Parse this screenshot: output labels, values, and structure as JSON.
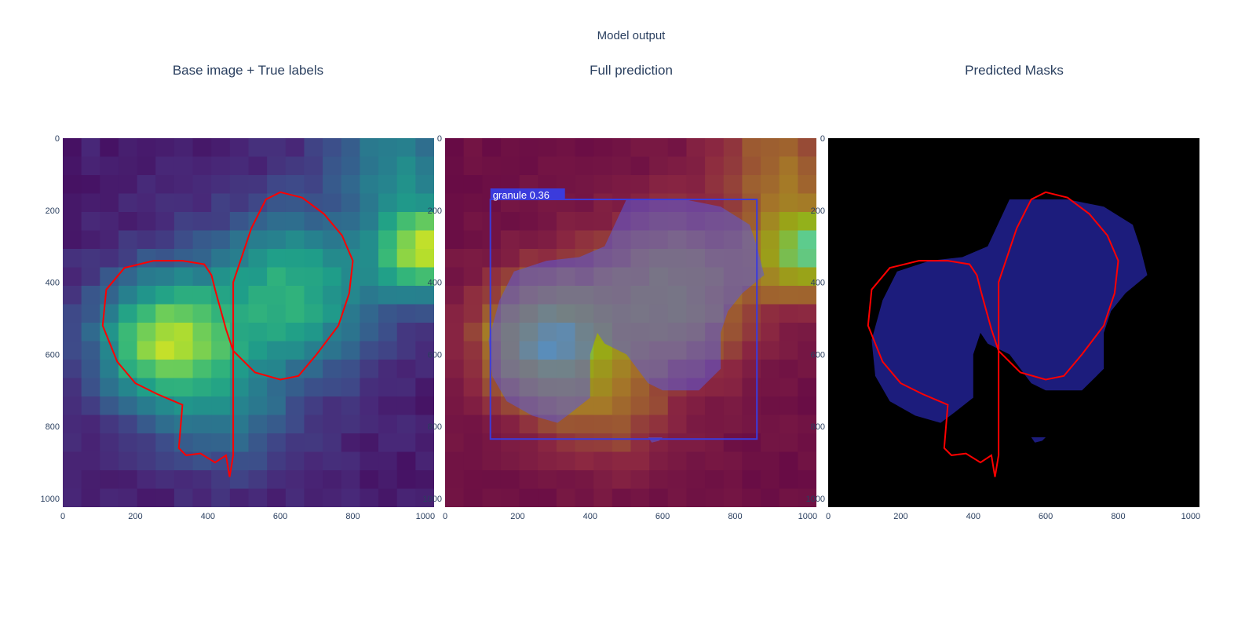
{
  "chart_data": {
    "type": "heatmap",
    "title": "Model output",
    "x_ticks": [
      0,
      200,
      400,
      600,
      800,
      1000
    ],
    "y_ticks": [
      0,
      200,
      400,
      600,
      800,
      1000
    ],
    "xlim": [
      0,
      1024
    ],
    "ylim": [
      1024,
      0
    ],
    "colors": {
      "true_label_contour": "#ff0000",
      "prediction_box": "#3b3bdc",
      "prediction_mask_overlay": "#5a5adc",
      "predicted_mask_fill": "#1c1c7c",
      "predicted_mask_background": "#000000",
      "label_text": "#ffffff"
    },
    "panels": [
      {
        "title": "Base image + True labels",
        "content": "heatmap with true label contour"
      },
      {
        "title": "Full prediction",
        "content": "heatmap with predicted mask overlay",
        "detection": {
          "label": "granule 0.36",
          "box": [
            125,
            170,
            860,
            835
          ]
        }
      },
      {
        "title": "Predicted Masks",
        "content": "binary mask with true label contour"
      }
    ],
    "true_label_contour": [
      [
        600,
        150
      ],
      [
        660,
        165
      ],
      [
        720,
        210
      ],
      [
        770,
        270
      ],
      [
        800,
        340
      ],
      [
        790,
        430
      ],
      [
        760,
        520
      ],
      [
        700,
        600
      ],
      [
        650,
        660
      ],
      [
        600,
        670
      ],
      [
        530,
        650
      ],
      [
        470,
        590
      ],
      [
        450,
        530
      ],
      [
        420,
        420
      ],
      [
        410,
        380
      ],
      [
        390,
        350
      ],
      [
        330,
        340
      ],
      [
        250,
        340
      ],
      [
        170,
        360
      ],
      [
        120,
        420
      ],
      [
        110,
        520
      ],
      [
        150,
        620
      ],
      [
        200,
        680
      ],
      [
        260,
        710
      ],
      [
        330,
        740
      ],
      [
        320,
        860
      ],
      [
        340,
        880
      ],
      [
        380,
        875
      ],
      [
        420,
        900
      ],
      [
        450,
        880
      ],
      [
        460,
        940
      ],
      [
        470,
        880
      ],
      [
        470,
        730
      ],
      [
        470,
        400
      ],
      [
        520,
        250
      ],
      [
        560,
        170
      ]
    ],
    "predicted_mask": [
      [
        500,
        170
      ],
      [
        580,
        170
      ],
      [
        660,
        170
      ],
      [
        760,
        190
      ],
      [
        840,
        240
      ],
      [
        860,
        300
      ],
      [
        880,
        380
      ],
      [
        820,
        430
      ],
      [
        780,
        480
      ],
      [
        760,
        540
      ],
      [
        760,
        640
      ],
      [
        700,
        700
      ],
      [
        600,
        700
      ],
      [
        560,
        680
      ],
      [
        500,
        600
      ],
      [
        440,
        570
      ],
      [
        420,
        540
      ],
      [
        400,
        600
      ],
      [
        400,
        720
      ],
      [
        350,
        760
      ],
      [
        310,
        790
      ],
      [
        240,
        770
      ],
      [
        170,
        730
      ],
      [
        130,
        660
      ],
      [
        120,
        560
      ],
      [
        150,
        450
      ],
      [
        190,
        370
      ],
      [
        280,
        340
      ],
      [
        370,
        330
      ],
      [
        440,
        300
      ]
    ],
    "predicted_mask_blob": [
      [
        560,
        830
      ],
      [
        600,
        830
      ],
      [
        590,
        840
      ],
      [
        570,
        845
      ]
    ]
  }
}
